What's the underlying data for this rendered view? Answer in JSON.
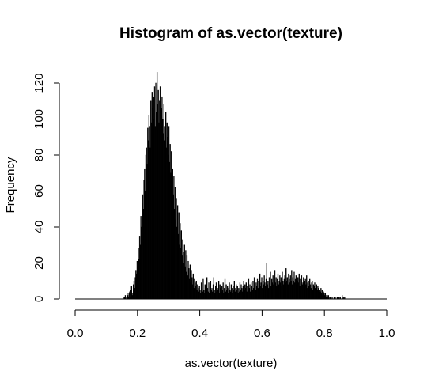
{
  "chart_data": {
    "type": "bar",
    "title": "Histogram of as.vector(texture)",
    "xlabel": "as.vector(texture)",
    "ylabel": "Frequency",
    "xlim": [
      0,
      1
    ],
    "ylim": [
      0,
      120
    ],
    "x_ticks": [
      "0.0",
      "0.2",
      "0.4",
      "0.6",
      "0.8",
      "1.0"
    ],
    "y_ticks": [
      "0",
      "20",
      "40",
      "60",
      "80",
      "100",
      "120"
    ],
    "bin_width": 0.002,
    "bin_start": 0.15,
    "values": [
      0,
      0,
      1,
      0,
      1,
      2,
      0,
      1,
      3,
      2,
      1,
      3,
      4,
      1,
      5,
      7,
      2,
      3,
      8,
      10,
      6,
      12,
      16,
      14,
      21,
      18,
      28,
      22,
      35,
      30,
      46,
      40,
      53,
      58,
      50,
      66,
      72,
      60,
      80,
      84,
      75,
      95,
      88,
      102,
      96,
      84,
      110,
      98,
      115,
      106,
      100,
      112,
      118,
      96,
      120,
      104,
      126,
      108,
      116,
      98,
      110,
      118,
      94,
      106,
      112,
      100,
      92,
      108,
      96,
      88,
      104,
      84,
      98,
      90,
      80,
      96,
      76,
      86,
      70,
      82,
      64,
      72,
      58,
      68,
      50,
      62,
      44,
      56,
      40,
      52,
      36,
      48,
      30,
      42,
      28,
      38,
      24,
      33,
      26,
      20,
      30,
      18,
      27,
      15,
      24,
      13,
      21,
      17,
      11,
      19,
      9,
      16,
      12,
      8,
      14,
      6,
      11,
      9,
      7,
      10,
      5,
      8,
      6,
      4,
      7,
      5,
      3,
      9,
      6,
      4,
      11,
      5,
      3,
      8,
      7,
      5,
      12,
      6,
      4,
      9,
      3,
      7,
      10,
      5,
      6,
      4,
      8,
      12,
      5,
      3,
      7,
      9,
      4,
      6,
      5,
      10,
      3,
      8,
      6,
      4,
      7,
      5,
      9,
      3,
      6,
      11,
      4,
      8,
      5,
      7,
      3,
      6,
      9,
      5,
      4,
      8,
      6,
      3,
      7,
      5,
      10,
      4,
      6,
      8,
      5,
      7,
      3,
      6,
      4,
      9,
      5,
      8,
      6,
      4,
      7,
      10,
      5,
      8,
      6,
      9,
      4,
      7,
      5,
      11,
      6,
      8,
      4,
      9,
      7,
      5,
      10,
      6,
      12,
      8,
      5,
      9,
      7,
      11,
      6,
      10,
      8,
      14,
      7,
      9,
      12,
      6,
      10,
      8,
      13,
      9,
      7,
      11,
      20,
      8,
      10,
      6,
      12,
      9,
      15,
      7,
      11,
      9,
      13,
      8,
      10,
      16,
      9,
      12,
      7,
      11,
      14,
      8,
      10,
      13,
      9,
      12,
      7,
      15,
      10,
      8,
      11,
      13,
      9,
      17,
      10,
      12,
      8,
      14,
      11,
      9,
      13,
      10,
      16,
      8,
      12,
      10,
      15,
      9,
      11,
      13,
      8,
      10,
      12,
      9,
      14,
      7,
      11,
      10,
      13,
      8,
      9,
      12,
      7,
      10,
      11,
      8,
      13,
      6,
      9,
      10,
      7,
      11,
      8,
      6,
      9,
      10,
      5,
      8,
      7,
      9,
      6,
      4,
      8,
      5,
      7,
      6,
      3,
      5,
      4,
      6,
      3,
      5,
      2,
      4,
      3,
      2,
      3,
      1,
      2,
      2,
      1,
      2,
      1,
      0,
      1,
      1,
      0,
      1,
      0,
      0,
      1,
      0,
      1,
      0,
      0,
      1,
      0,
      0,
      1,
      0,
      1,
      0,
      0,
      2,
      0,
      1,
      0,
      1
    ]
  }
}
